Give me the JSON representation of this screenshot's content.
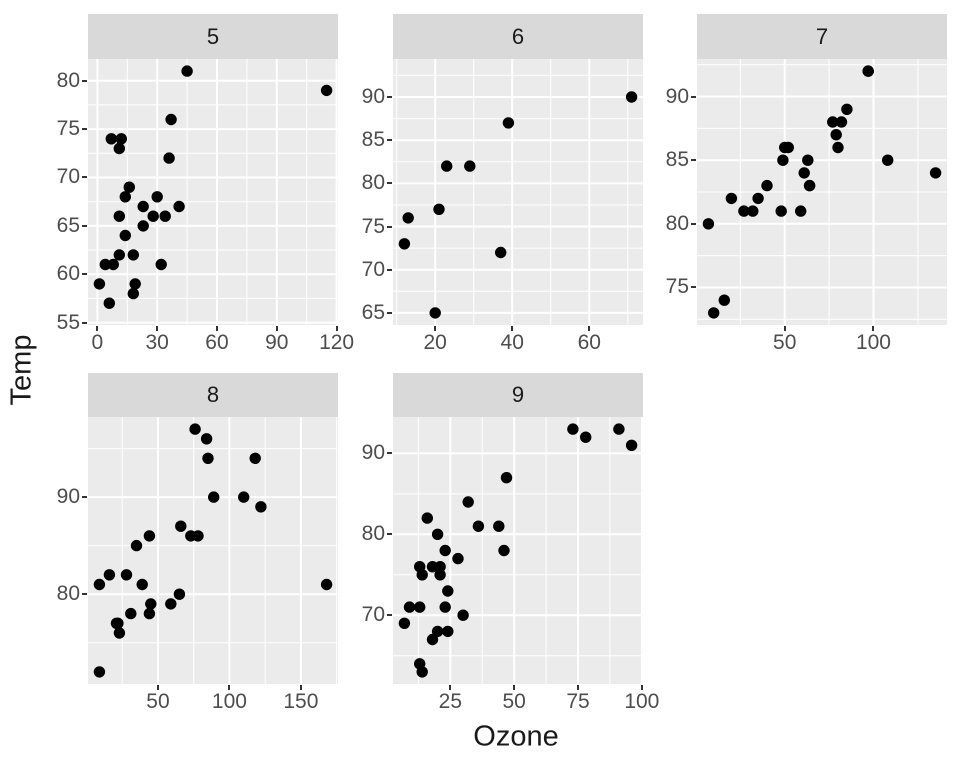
{
  "chart_data": {
    "type": "scatter",
    "title": "",
    "xlabel": "Ozone",
    "ylabel": "Temp",
    "facet_labels": [
      "5",
      "6",
      "7",
      "8",
      "9"
    ],
    "grid": true,
    "legend": "none",
    "style": {
      "point_color": "#000000",
      "panel_bg": "#EBEBEB",
      "strip_bg": "#D9D9D9",
      "grid_color": "#FFFFFF",
      "axis_text_color": "#4D4D4D",
      "tick_mark_color": "#333333"
    },
    "facets": [
      {
        "label": "5",
        "xlim": [
          -4.7,
          120.7
        ],
        "ylim": [
          54.75,
          82.25
        ],
        "x_breaks": [
          0,
          30,
          60,
          90,
          120
        ],
        "x_minor": [
          15,
          45,
          75,
          105
        ],
        "y_breaks": [
          55,
          60,
          65,
          70,
          75,
          80
        ],
        "y_minor": [
          57.5,
          62.5,
          67.5,
          72.5,
          77.5
        ],
        "points": [
          [
            41,
            67
          ],
          [
            36,
            72
          ],
          [
            12,
            74
          ],
          [
            18,
            62
          ],
          [
            28,
            66
          ],
          [
            23,
            65
          ],
          [
            19,
            59
          ],
          [
            8,
            61
          ],
          [
            7,
            74
          ],
          [
            16,
            69
          ],
          [
            11,
            66
          ],
          [
            14,
            68
          ],
          [
            18,
            58
          ],
          [
            14,
            64
          ],
          [
            34,
            66
          ],
          [
            6,
            57
          ],
          [
            30,
            68
          ],
          [
            11,
            62
          ],
          [
            1,
            59
          ],
          [
            11,
            73
          ],
          [
            4,
            61
          ],
          [
            32,
            61
          ],
          [
            23,
            67
          ],
          [
            45,
            81
          ],
          [
            115,
            79
          ],
          [
            37,
            76
          ]
        ]
      },
      {
        "label": "6",
        "xlim": [
          9.05,
          73.95
        ],
        "ylim": [
          63.6,
          94.4
        ],
        "x_breaks": [
          20,
          40,
          60
        ],
        "x_minor": [
          10,
          30,
          50,
          70
        ],
        "y_breaks": [
          65,
          70,
          75,
          80,
          85,
          90
        ],
        "y_minor": [
          67.5,
          72.5,
          77.5,
          82.5,
          87.5,
          92.5
        ],
        "points": [
          [
            29,
            82
          ],
          [
            71,
            90
          ],
          [
            39,
            87
          ],
          [
            23,
            82
          ],
          [
            21,
            77
          ],
          [
            37,
            72
          ],
          [
            20,
            65
          ],
          [
            12,
            73
          ],
          [
            13,
            76
          ]
        ]
      },
      {
        "label": "7",
        "xlim": [
          0.6,
          141.4
        ],
        "ylim": [
          72.05,
          92.95
        ],
        "x_breaks": [
          50,
          100
        ],
        "x_minor": [
          25,
          75,
          125
        ],
        "y_breaks": [
          75,
          80,
          85,
          90
        ],
        "y_minor": [
          72.5,
          77.5,
          82.5,
          87.5,
          92.5
        ],
        "points": [
          [
            135,
            84
          ],
          [
            49,
            85
          ],
          [
            32,
            81
          ],
          [
            64,
            83
          ],
          [
            40,
            83
          ],
          [
            77,
            88
          ],
          [
            97,
            92
          ],
          [
            97,
            92
          ],
          [
            85,
            89
          ],
          [
            10,
            73
          ],
          [
            27,
            81
          ],
          [
            7,
            80
          ],
          [
            48,
            81
          ],
          [
            35,
            82
          ],
          [
            61,
            84
          ],
          [
            79,
            87
          ],
          [
            63,
            85
          ],
          [
            16,
            74
          ],
          [
            80,
            86
          ],
          [
            108,
            85
          ],
          [
            20,
            82
          ],
          [
            52,
            86
          ],
          [
            82,
            88
          ],
          [
            50,
            86
          ],
          [
            64,
            83
          ],
          [
            59,
            81
          ]
        ]
      },
      {
        "label": "8",
        "xlim": [
          1.05,
          175.95
        ],
        "ylim": [
          70.75,
          98.25
        ],
        "x_breaks": [
          50,
          100,
          150
        ],
        "x_minor": [
          25,
          75,
          125,
          175
        ],
        "y_breaks": [
          80,
          90
        ],
        "y_minor": [
          75,
          85,
          95
        ],
        "points": [
          [
            39,
            81
          ],
          [
            9,
            81
          ],
          [
            16,
            82
          ],
          [
            78,
            86
          ],
          [
            35,
            85
          ],
          [
            66,
            87
          ],
          [
            122,
            89
          ],
          [
            89,
            90
          ],
          [
            110,
            90
          ],
          [
            44,
            86
          ],
          [
            28,
            82
          ],
          [
            65,
            80
          ],
          [
            22,
            77
          ],
          [
            59,
            79
          ],
          [
            23,
            76
          ],
          [
            31,
            78
          ],
          [
            44,
            78
          ],
          [
            21,
            77
          ],
          [
            9,
            72
          ],
          [
            45,
            79
          ],
          [
            168,
            81
          ],
          [
            73,
            86
          ],
          [
            76,
            97
          ],
          [
            118,
            94
          ],
          [
            84,
            96
          ],
          [
            85,
            94
          ]
        ]
      },
      {
        "label": "9",
        "xlim": [
          2.55,
          100.45
        ],
        "ylim": [
          61.5,
          94.5
        ],
        "x_breaks": [
          25,
          50,
          75,
          100
        ],
        "x_minor": [
          12.5,
          37.5,
          62.5,
          87.5
        ],
        "y_breaks": [
          70,
          80,
          90
        ],
        "y_minor": [
          65,
          75,
          85
        ],
        "points": [
          [
            96,
            91
          ],
          [
            78,
            92
          ],
          [
            73,
            93
          ],
          [
            91,
            93
          ],
          [
            47,
            87
          ],
          [
            32,
            84
          ],
          [
            20,
            80
          ],
          [
            23,
            78
          ],
          [
            21,
            75
          ],
          [
            24,
            73
          ],
          [
            44,
            81
          ],
          [
            21,
            76
          ],
          [
            28,
            77
          ],
          [
            9,
            71
          ],
          [
            13,
            71
          ],
          [
            46,
            78
          ],
          [
            18,
            67
          ],
          [
            13,
            76
          ],
          [
            24,
            68
          ],
          [
            16,
            82
          ],
          [
            13,
            64
          ],
          [
            23,
            71
          ],
          [
            36,
            81
          ],
          [
            7,
            69
          ],
          [
            14,
            63
          ],
          [
            30,
            70
          ],
          [
            14,
            75
          ],
          [
            18,
            76
          ],
          [
            20,
            68
          ]
        ]
      }
    ]
  }
}
